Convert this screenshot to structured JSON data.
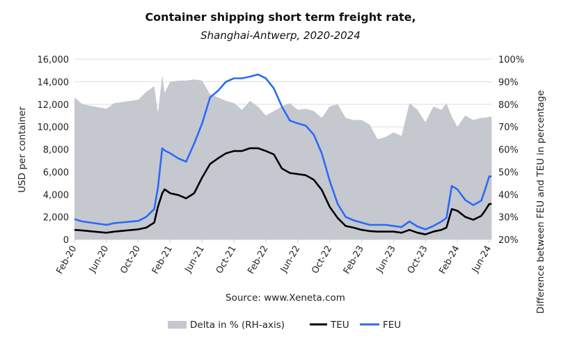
{
  "chart_data": {
    "type": "line",
    "title": "Container shipping short term freight rate,",
    "subtitle": "Shanghai-Antwerp, 2020-2024",
    "ylabel": "USD per container",
    "y2label": "Difference between FEU and TEU in percentage",
    "source": "Source: www.Xeneta.com",
    "ylim": [
      0,
      16000
    ],
    "y2lim": [
      20,
      100
    ],
    "yticks": [
      "0",
      "2,000",
      "4,000",
      "6,000",
      "8,000",
      "10,000",
      "12,000",
      "14,000",
      "16,000"
    ],
    "y2ticks": [
      "20%",
      "30%",
      "40%",
      "50%",
      "60%",
      "70%",
      "80%",
      "90%",
      "100%"
    ],
    "xticks": [
      "Feb-20",
      "Jun-20",
      "Oct-20",
      "Feb-21",
      "Jun-21",
      "Oct-21",
      "Feb-22",
      "Jun-22",
      "Oct-22",
      "Feb-23",
      "Jun-23",
      "Oct-23",
      "Feb-24",
      "Jun-24"
    ],
    "grid": true,
    "legend_position": "bottom",
    "colors": {
      "delta": "#c5c8cf",
      "teu": "#000000",
      "feu": "#2a6af5",
      "grid": "#dcdcdc"
    },
    "x": [
      "2020-02-01",
      "2020-03-01",
      "2020-06-01",
      "2020-07-01",
      "2020-10-01",
      "2020-11-01",
      "2020-12-01",
      "2020-12-15",
      "2021-01-01",
      "2021-01-10",
      "2021-02-01",
      "2021-03-01",
      "2021-04-01",
      "2021-05-01",
      "2021-06-01",
      "2021-07-01",
      "2021-08-01",
      "2021-09-01",
      "2021-10-01",
      "2021-11-01",
      "2021-12-01",
      "2022-01-01",
      "2022-02-01",
      "2022-03-01",
      "2022-04-01",
      "2022-05-01",
      "2022-06-01",
      "2022-07-01",
      "2022-08-01",
      "2022-09-01",
      "2022-10-01",
      "2022-11-01",
      "2022-12-01",
      "2023-01-01",
      "2023-02-01",
      "2023-03-01",
      "2023-04-01",
      "2023-05-01",
      "2023-06-01",
      "2023-07-01",
      "2023-08-01",
      "2023-09-01",
      "2023-10-01",
      "2023-11-01",
      "2023-12-01",
      "2023-12-20",
      "2024-01-10",
      "2024-02-01",
      "2024-03-01",
      "2024-04-01",
      "2024-05-01",
      "2024-05-15",
      "2024-06-01",
      "2024-06-10"
    ],
    "series": [
      {
        "name": "Delta in % (RH-axis)",
        "type": "area",
        "axis": "right",
        "values": [
          83,
          80,
          78,
          80.5,
          82,
          85.5,
          88,
          76,
          93,
          85,
          90,
          90.5,
          90.5,
          91,
          90.5,
          84.5,
          83,
          81.5,
          80.5,
          77.5,
          81.5,
          79,
          75,
          77,
          79,
          80.5,
          77.5,
          78,
          77,
          74,
          79,
          80,
          74,
          73,
          73,
          71,
          64.5,
          65.5,
          67.5,
          66,
          80.5,
          77.5,
          72,
          79,
          77.5,
          80.5,
          74.5,
          70,
          75,
          73,
          74,
          74,
          74.5,
          74.5
        ]
      },
      {
        "name": "TEU",
        "type": "line",
        "axis": "left",
        "values": [
          850,
          800,
          600,
          700,
          900,
          1050,
          1500,
          2900,
          4100,
          4450,
          4100,
          3950,
          3650,
          4100,
          5500,
          6700,
          7200,
          7650,
          7850,
          7850,
          8100,
          8100,
          7850,
          7550,
          6300,
          5900,
          5800,
          5700,
          5300,
          4400,
          2900,
          1900,
          1200,
          1050,
          850,
          750,
          700,
          700,
          700,
          600,
          850,
          600,
          450,
          700,
          850,
          1050,
          2700,
          2550,
          2000,
          1750,
          2100,
          2550,
          3150,
          3150
        ]
      },
      {
        "name": "FEU",
        "type": "line",
        "axis": "left",
        "values": [
          1800,
          1600,
          1300,
          1450,
          1650,
          2000,
          2700,
          4600,
          8100,
          7900,
          7650,
          7200,
          6900,
          8500,
          10300,
          12600,
          13200,
          14000,
          14300,
          14300,
          14450,
          14650,
          14300,
          13400,
          11800,
          10550,
          10300,
          10100,
          9300,
          7650,
          5200,
          3150,
          2000,
          1700,
          1500,
          1300,
          1300,
          1300,
          1200,
          1100,
          1600,
          1150,
          900,
          1200,
          1600,
          1900,
          4750,
          4450,
          3500,
          3050,
          3450,
          4400,
          5600,
          5600
        ]
      }
    ]
  }
}
